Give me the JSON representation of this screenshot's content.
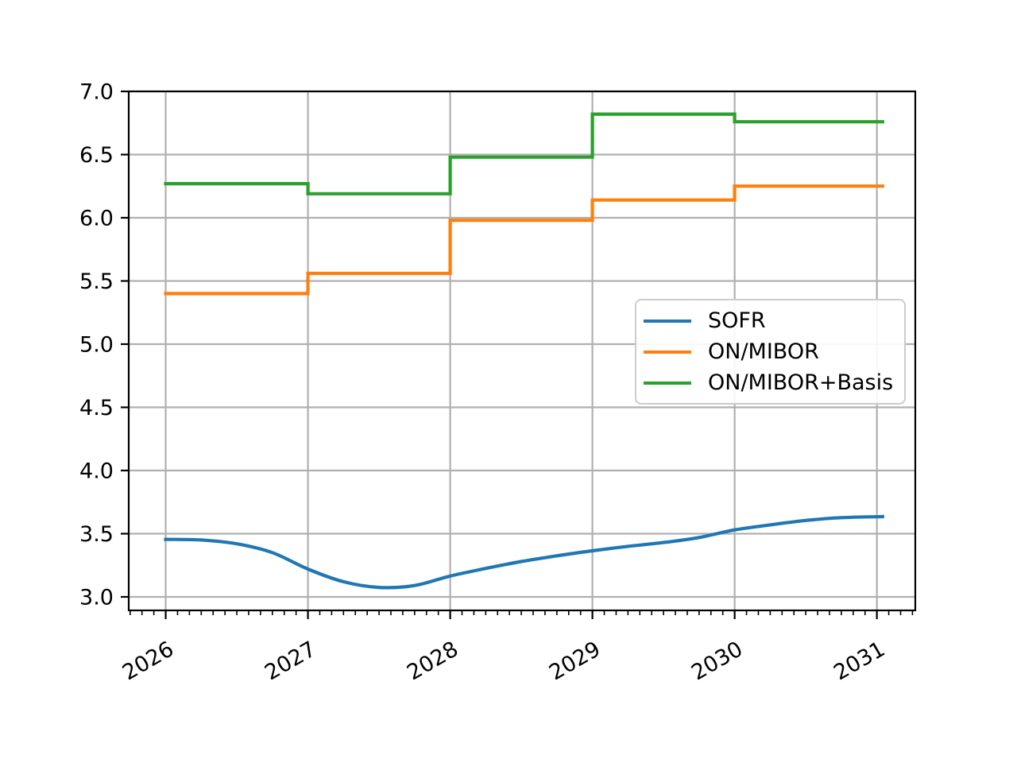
{
  "chart_data": {
    "type": "line",
    "title": "",
    "xlabel": "",
    "ylabel": "",
    "x_ticks": [
      2026,
      2027,
      2028,
      2029,
      2030,
      2031
    ],
    "x_tick_labels": [
      "2026",
      "2027",
      "2028",
      "2029",
      "2030",
      "2031"
    ],
    "y_ticks": [
      3.0,
      3.5,
      4.0,
      4.5,
      5.0,
      5.5,
      6.0,
      6.5,
      7.0
    ],
    "y_tick_labels": [
      "3.0",
      "3.5",
      "4.0",
      "4.5",
      "5.0",
      "5.5",
      "6.0",
      "6.5",
      "7.0"
    ],
    "xlim": [
      2025.74,
      2031.27
    ],
    "ylim": [
      2.893,
      7.0
    ],
    "x_minor_tick_interval_years": 0.0833,
    "grid": true,
    "grid_color": "#b0b0b0",
    "axis_color": "#000000",
    "background": "#ffffff",
    "legend": {
      "position": "center-right",
      "entries": [
        "SOFR",
        "ON/MIBOR",
        "ON/MIBOR+Basis"
      ]
    },
    "series": [
      {
        "name": "SOFR",
        "color": "#1f77b4",
        "style": "smooth",
        "points": [
          [
            2026.0,
            3.455
          ],
          [
            2026.25,
            3.45
          ],
          [
            2026.5,
            3.42
          ],
          [
            2026.75,
            3.35
          ],
          [
            2027.0,
            3.22
          ],
          [
            2027.25,
            3.12
          ],
          [
            2027.5,
            3.075
          ],
          [
            2027.75,
            3.09
          ],
          [
            2028.0,
            3.165
          ],
          [
            2028.25,
            3.225
          ],
          [
            2028.5,
            3.28
          ],
          [
            2028.75,
            3.325
          ],
          [
            2029.0,
            3.365
          ],
          [
            2029.25,
            3.4
          ],
          [
            2029.5,
            3.43
          ],
          [
            2029.75,
            3.47
          ],
          [
            2030.0,
            3.53
          ],
          [
            2030.25,
            3.57
          ],
          [
            2030.5,
            3.605
          ],
          [
            2030.75,
            3.627
          ],
          [
            2031.04,
            3.635
          ]
        ]
      },
      {
        "name": "ON/MIBOR",
        "color": "#ff7f0e",
        "style": "step",
        "points": [
          [
            2026.0,
            5.4
          ],
          [
            2027.0,
            5.56
          ],
          [
            2028.0,
            5.98
          ],
          [
            2029.0,
            6.14
          ],
          [
            2030.0,
            6.25
          ],
          [
            2031.04,
            6.25
          ]
        ]
      },
      {
        "name": "ON/MIBOR+Basis",
        "color": "#2ca02c",
        "style": "step",
        "points": [
          [
            2026.0,
            6.27
          ],
          [
            2027.0,
            6.19
          ],
          [
            2028.0,
            6.48
          ],
          [
            2029.0,
            6.82
          ],
          [
            2030.0,
            6.76
          ],
          [
            2031.04,
            6.76
          ]
        ]
      }
    ]
  }
}
